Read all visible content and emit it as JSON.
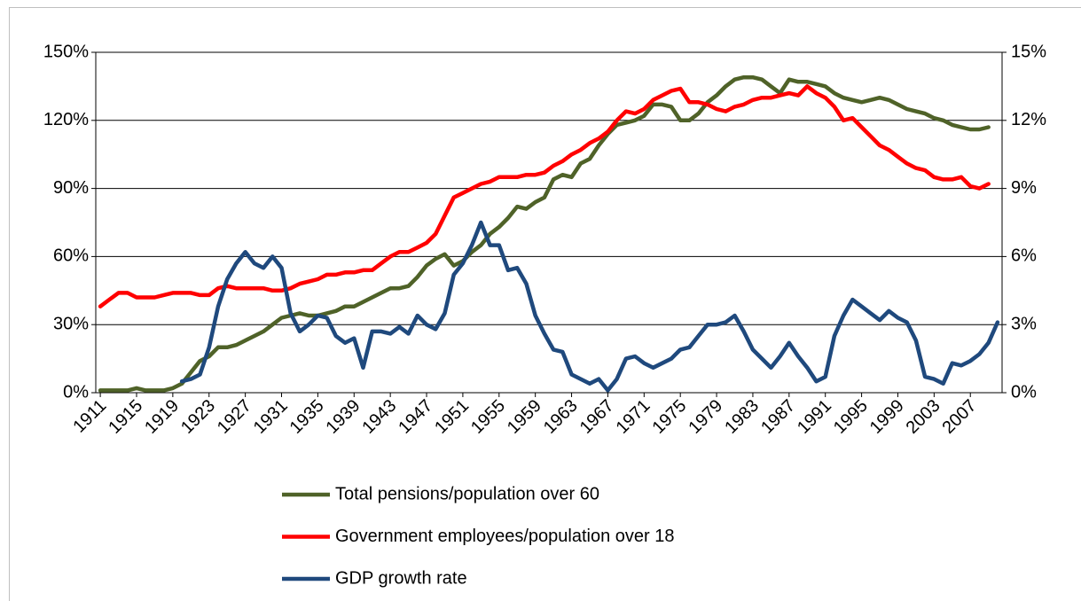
{
  "chart_data": {
    "type": "line",
    "x": [
      1911,
      1912,
      1913,
      1914,
      1915,
      1916,
      1917,
      1918,
      1919,
      1920,
      1921,
      1922,
      1923,
      1924,
      1925,
      1926,
      1927,
      1928,
      1929,
      1930,
      1931,
      1932,
      1933,
      1934,
      1935,
      1936,
      1937,
      1938,
      1939,
      1940,
      1941,
      1942,
      1943,
      1944,
      1945,
      1946,
      1947,
      1948,
      1949,
      1950,
      1951,
      1952,
      1953,
      1954,
      1955,
      1956,
      1957,
      1958,
      1959,
      1960,
      1961,
      1962,
      1963,
      1964,
      1965,
      1966,
      1967,
      1968,
      1969,
      1970,
      1971,
      1972,
      1973,
      1974,
      1975,
      1976,
      1977,
      1978,
      1979,
      1980,
      1981,
      1982,
      1983,
      1984,
      1985,
      1986,
      1987,
      1988,
      1989,
      1990,
      1991,
      1992,
      1993,
      1994,
      1995,
      1996,
      1997,
      1998,
      1999,
      2000,
      2001,
      2002,
      2003,
      2004,
      2005,
      2006,
      2007,
      2008,
      2009,
      2010
    ],
    "xlim": [
      1910.5,
      2010.5
    ],
    "xticks": [
      1911,
      1915,
      1919,
      1923,
      1927,
      1931,
      1935,
      1939,
      1943,
      1947,
      1951,
      1955,
      1959,
      1963,
      1967,
      1971,
      1975,
      1979,
      1983,
      1987,
      1991,
      1995,
      1999,
      2003,
      2007
    ],
    "ylim": [
      0,
      150
    ],
    "yticks": [
      {
        "value": 0,
        "label": "0%"
      },
      {
        "value": 30,
        "label": "30%"
      },
      {
        "value": 60,
        "label": "60%"
      },
      {
        "value": 90,
        "label": "90%"
      },
      {
        "value": 120,
        "label": "120%"
      },
      {
        "value": 150,
        "label": "150%"
      }
    ],
    "y2lim": [
      0,
      15
    ],
    "y2ticks": [
      {
        "value": 0,
        "label": "0%"
      },
      {
        "value": 3,
        "label": "3%"
      },
      {
        "value": 6,
        "label": "6%"
      },
      {
        "value": 9,
        "label": "9%"
      },
      {
        "value": 12,
        "label": "12%"
      },
      {
        "value": 15,
        "label": "15%"
      }
    ],
    "grid": true,
    "legend": "bottom",
    "series": [
      {
        "name": "Total pensions/population over 60",
        "color": "#4f6228",
        "values": [
          1,
          1,
          1,
          1,
          2,
          1,
          1,
          1,
          2,
          4,
          9,
          14,
          16,
          20,
          20,
          21,
          23,
          25,
          27,
          30,
          33,
          34,
          35,
          34,
          34,
          35,
          36,
          38,
          38,
          40,
          42,
          44,
          46,
          46,
          47,
          51,
          56,
          59,
          61,
          56,
          58,
          62,
          65,
          70,
          73,
          77,
          82,
          81,
          84,
          86,
          94,
          96,
          95,
          101,
          103,
          109,
          114,
          118,
          119,
          120,
          122,
          127,
          127,
          126,
          120,
          120,
          123,
          128,
          131,
          135,
          138,
          139,
          139,
          138,
          135,
          132,
          138,
          137,
          137,
          136,
          135,
          132,
          130,
          129,
          128,
          129,
          130,
          129,
          127,
          125,
          124,
          123,
          121,
          120,
          118,
          117,
          116,
          116,
          117,
          null
        ]
      },
      {
        "name": "Government employees/population over 18",
        "color": "#ff0000",
        "values": [
          38,
          41,
          44,
          44,
          42,
          42,
          42,
          43,
          44,
          44,
          44,
          43,
          43,
          46,
          47,
          46,
          46,
          46,
          46,
          45,
          45,
          46,
          48,
          49,
          50,
          52,
          52,
          53,
          53,
          54,
          54,
          57,
          60,
          62,
          62,
          64,
          66,
          70,
          78,
          86,
          88,
          90,
          92,
          93,
          95,
          95,
          95,
          96,
          96,
          97,
          100,
          102,
          105,
          107,
          110,
          112,
          115,
          120,
          124,
          123,
          125,
          129,
          131,
          133,
          134,
          128,
          128,
          127,
          125,
          124,
          126,
          127,
          129,
          130,
          130,
          131,
          132,
          131,
          135,
          132,
          130,
          126,
          120,
          121,
          117,
          113,
          109,
          107,
          104,
          101,
          99,
          98,
          95,
          94,
          94,
          95,
          91,
          90,
          92,
          null
        ]
      },
      {
        "name": "GDP growth rate",
        "color": "#1f497d",
        "axis": "y2",
        "values": [
          null,
          null,
          null,
          null,
          null,
          null,
          null,
          null,
          null,
          0.5,
          0.6,
          0.8,
          2,
          3.8,
          5,
          5.7,
          6.2,
          5.7,
          5.5,
          6,
          5.5,
          3.5,
          2.7,
          3,
          3.4,
          3.3,
          2.5,
          2.2,
          2.4,
          1.1,
          2.7,
          2.7,
          2.6,
          2.9,
          2.6,
          3.4,
          3,
          2.8,
          3.5,
          5.2,
          5.7,
          6.5,
          7.5,
          6.5,
          6.5,
          5.4,
          5.5,
          4.8,
          3.4,
          2.6,
          1.9,
          1.8,
          0.8,
          0.6,
          0.4,
          0.6,
          0.1,
          0.6,
          1.5,
          1.6,
          1.3,
          1.1,
          1.3,
          1.5,
          1.9,
          2,
          2.5,
          3,
          3,
          3.1,
          3.4,
          2.7,
          1.9,
          1.5,
          1.1,
          1.6,
          2.2,
          1.6,
          1.1,
          0.5,
          0.7,
          2.5,
          3.4,
          4.1,
          3.8,
          3.5,
          3.2,
          3.6,
          3.3,
          3.1,
          2.3,
          0.7,
          0.6,
          0.4,
          1.3,
          1.2,
          1.4,
          1.7,
          2.2,
          3.1
        ]
      }
    ]
  }
}
